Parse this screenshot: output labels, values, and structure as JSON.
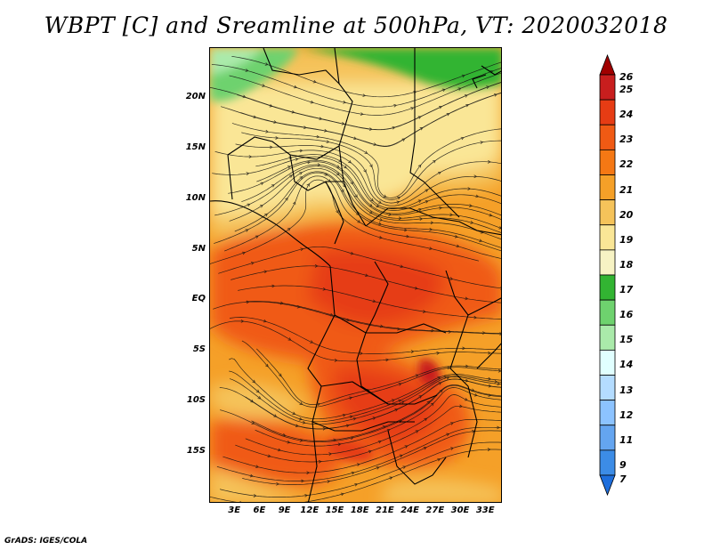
{
  "title": "WBPT [C] and Sreamline at 500hPa, VT: 2020032018",
  "footer": "GrADS: IGES/COLA",
  "map": {
    "lon_range": [
      0,
      35
    ],
    "lat_range": [
      -20,
      25
    ],
    "lat_ticks": [
      {
        "value": 20,
        "label": "20N"
      },
      {
        "value": 15,
        "label": "15N"
      },
      {
        "value": 10,
        "label": "10N"
      },
      {
        "value": 5,
        "label": "5N"
      },
      {
        "value": 0,
        "label": "EQ"
      },
      {
        "value": -5,
        "label": "5S"
      },
      {
        "value": -10,
        "label": "10S"
      },
      {
        "value": -15,
        "label": "15S"
      }
    ],
    "lon_ticks": [
      {
        "value": 3,
        "label": "3E"
      },
      {
        "value": 6,
        "label": "6E"
      },
      {
        "value": 9,
        "label": "9E"
      },
      {
        "value": 12,
        "label": "12E"
      },
      {
        "value": 15,
        "label": "15E"
      },
      {
        "value": 18,
        "label": "18E"
      },
      {
        "value": 21,
        "label": "21E"
      },
      {
        "value": 24,
        "label": "24E"
      },
      {
        "value": 27,
        "label": "27E"
      },
      {
        "value": 30,
        "label": "30E"
      },
      {
        "value": 33,
        "label": "33E"
      }
    ]
  },
  "colorbar": {
    "levels": [
      "26",
      "25",
      "24",
      "23",
      "22",
      "21",
      "20",
      "19",
      "18",
      "17",
      "16",
      "15",
      "14",
      "13",
      "12",
      "11",
      "9",
      "7"
    ],
    "colors": [
      "#a00000",
      "#c81e1e",
      "#e63c14",
      "#f05a14",
      "#f57814",
      "#f5a028",
      "#f5c35a",
      "#fae696",
      "#f7f3c4",
      "#32b432",
      "#6ed26e",
      "#aaeaaa",
      "#e1ffff",
      "#b4dcff",
      "#8cc3ff",
      "#64a5f0",
      "#3c8ce6",
      "#1e6edc"
    ]
  }
}
